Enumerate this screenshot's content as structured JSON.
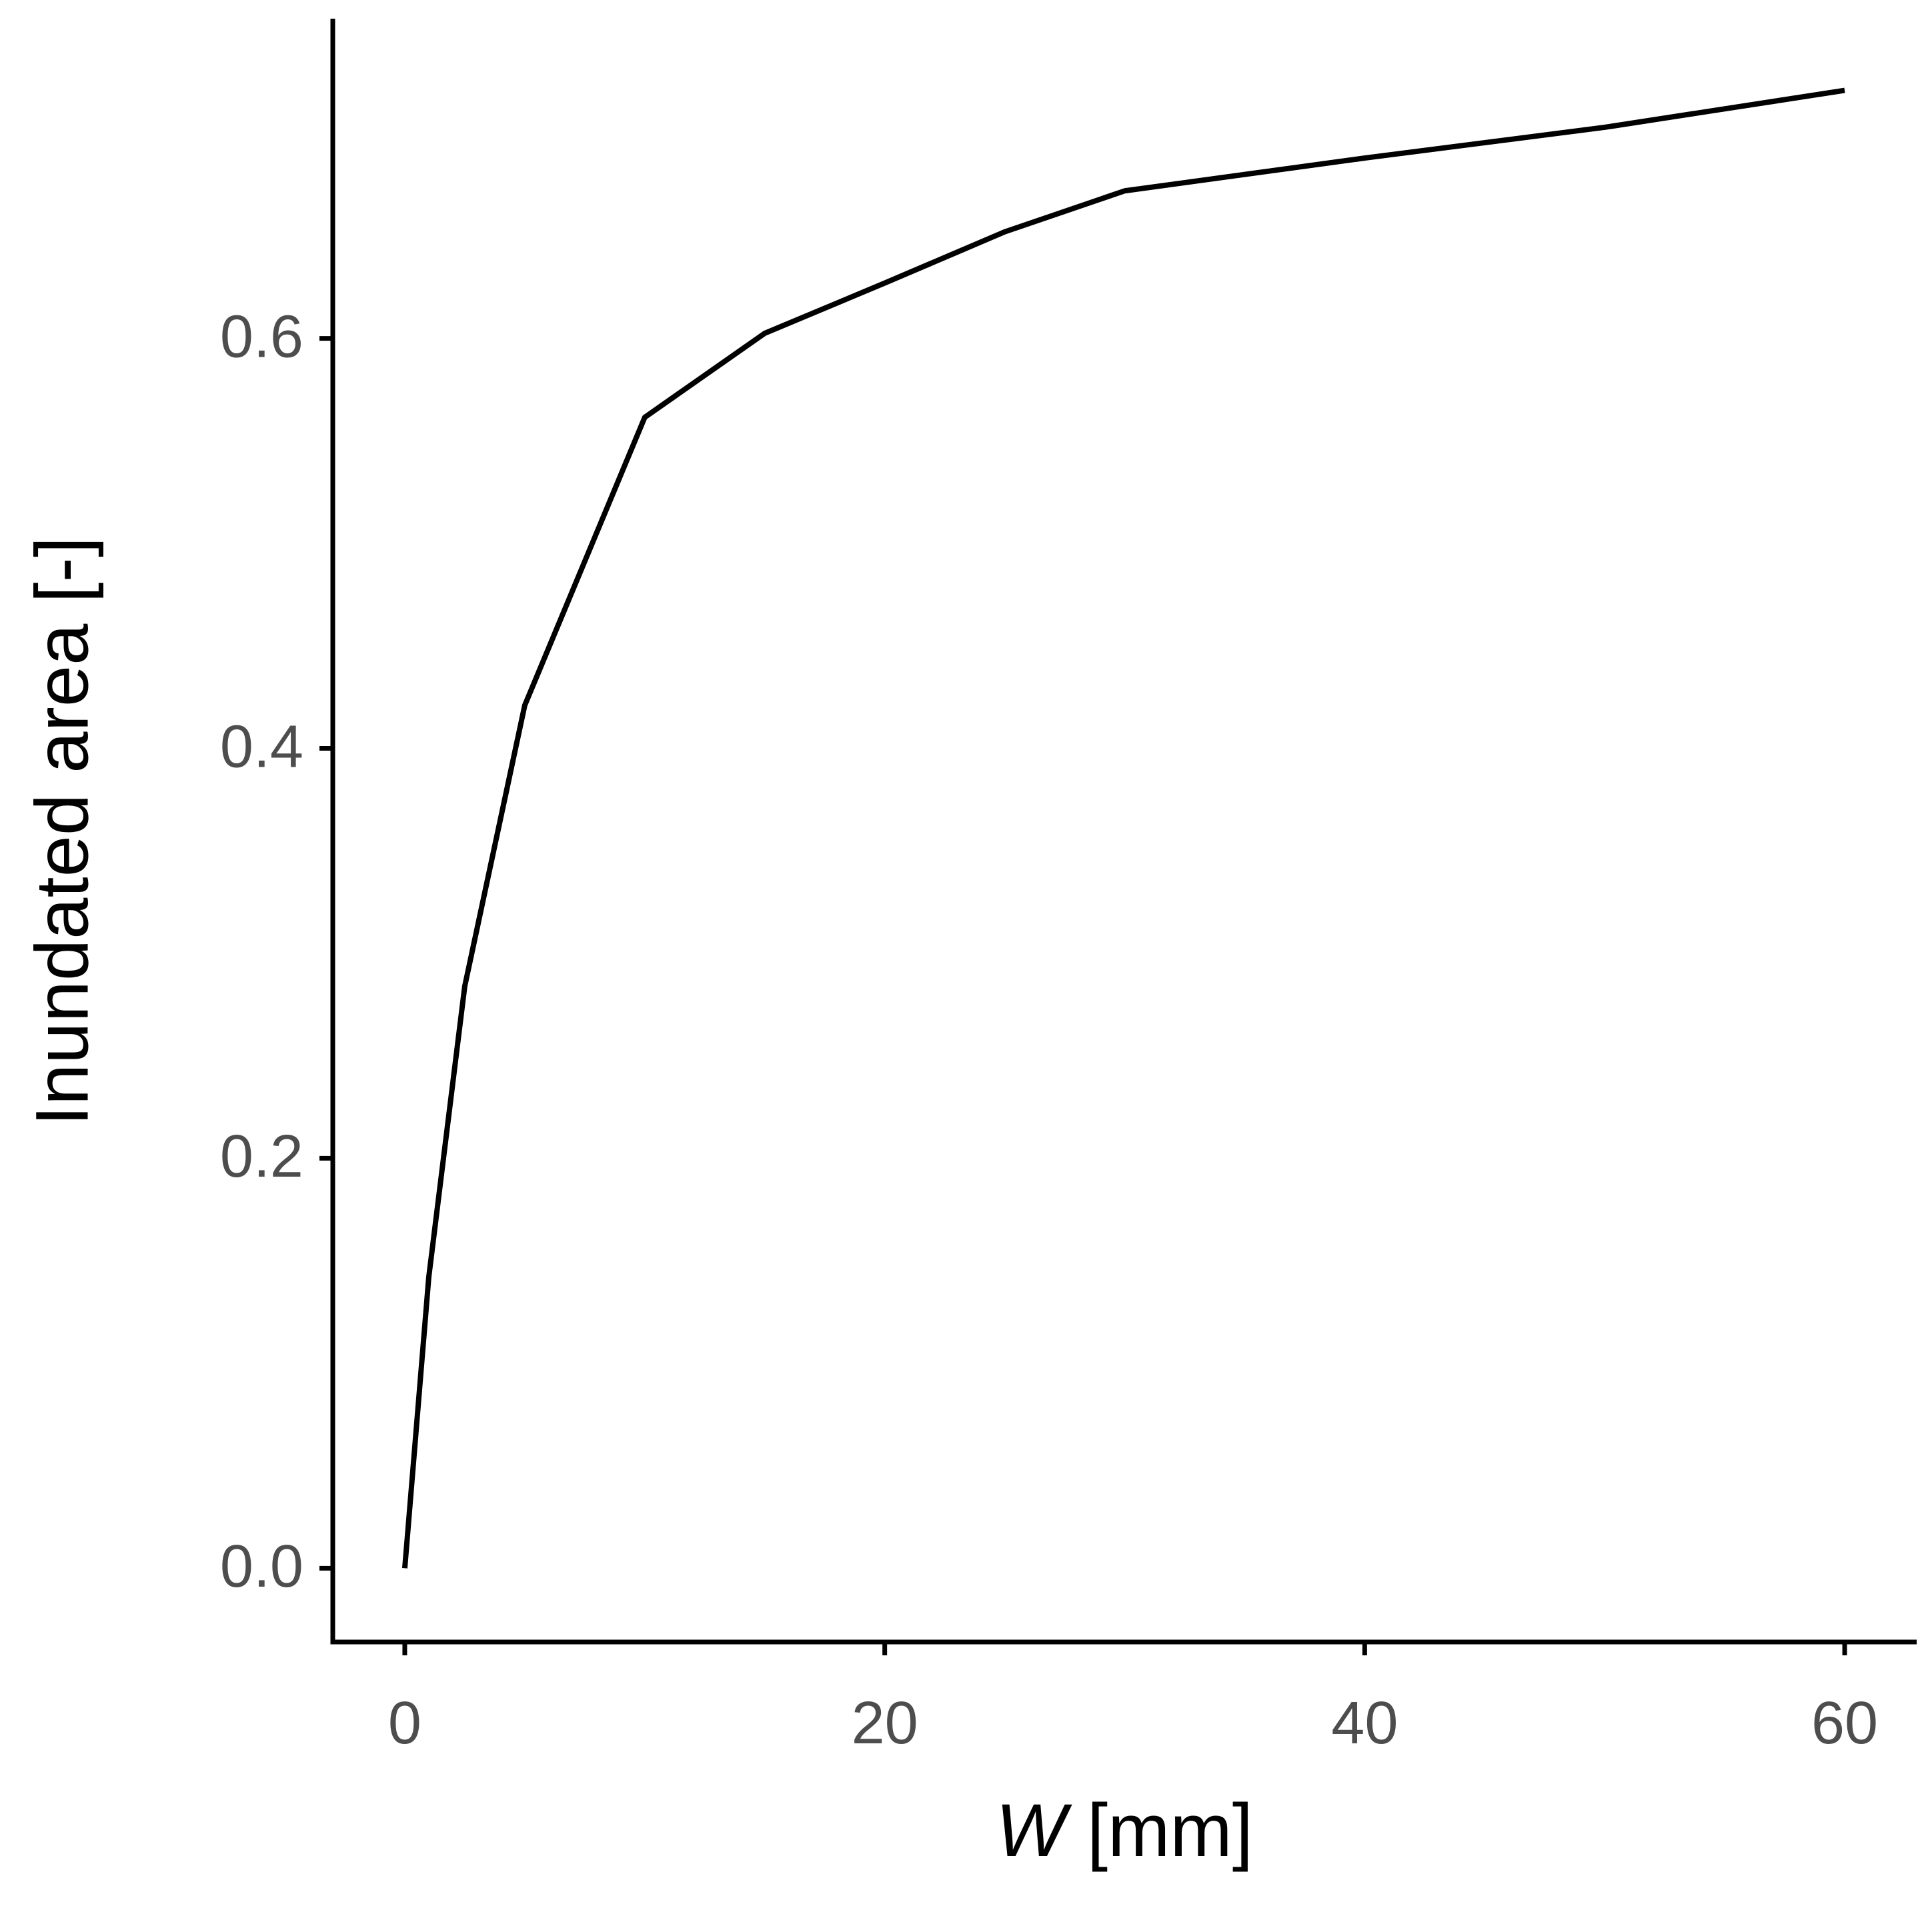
{
  "chart_data": {
    "type": "line",
    "x_label": {
      "symbol": "W",
      "unit": "[mm]"
    },
    "y_label": "Inundated area [-]",
    "x": [
      0,
      1,
      2.5,
      5,
      10,
      15,
      20,
      25,
      30,
      40,
      50,
      60
    ],
    "series": [
      {
        "color": "#000000",
        "values": [
          0,
          0.142,
          0.284,
          0.421,
          0.5615,
          0.6025,
          0.627,
          0.652,
          0.672,
          0.688,
          0.703,
          0.721
        ]
      }
    ],
    "xlim": [
      -3,
      63
    ],
    "xticks": [
      0,
      20,
      40,
      60
    ],
    "ylim": [
      -0.036,
      0.756
    ],
    "yticks": [
      {
        "value": 0,
        "label": "0.0"
      },
      0.2,
      0.4,
      0.6
    ]
  }
}
